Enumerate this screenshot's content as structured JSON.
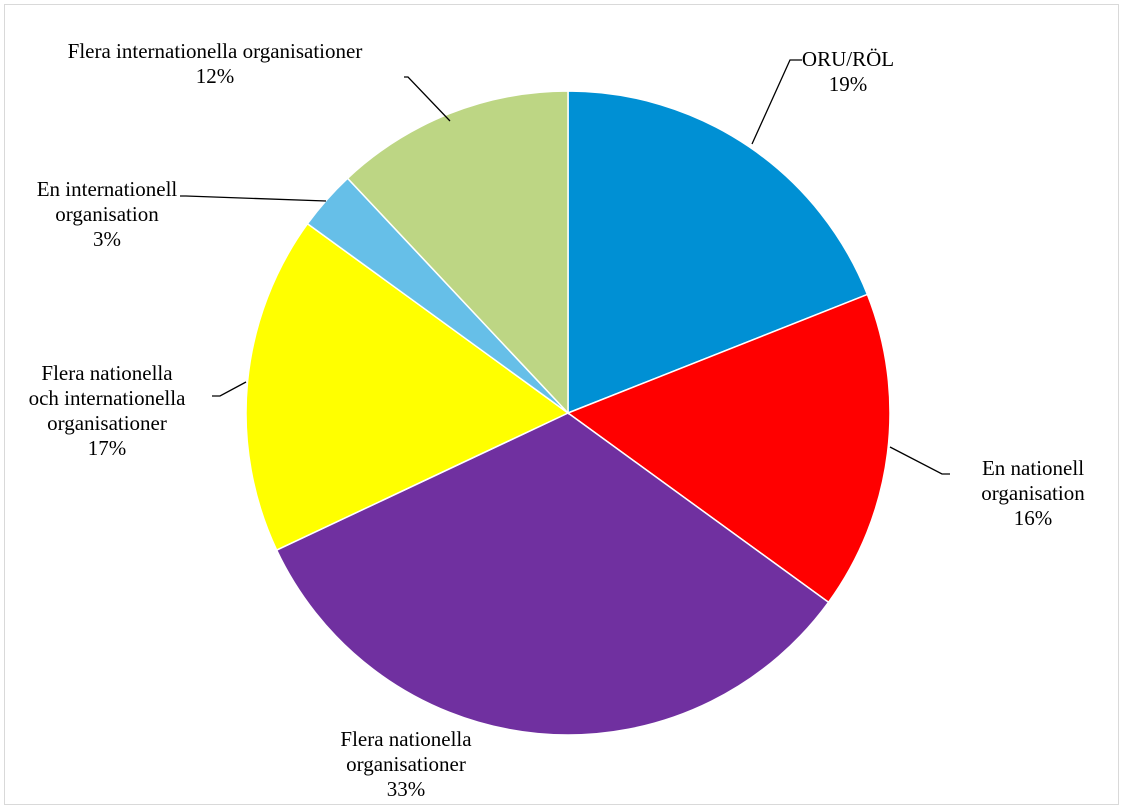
{
  "chart_data": {
    "type": "pie",
    "title": "",
    "slices": [
      {
        "label": "ORU/RÖL",
        "label_lines": [
          "ORU/RÖL"
        ],
        "value": 19,
        "value_label": "19%",
        "color": "#0090D4"
      },
      {
        "label": "En nationell organisation",
        "label_lines": [
          "En nationell",
          "organisation"
        ],
        "value": 16,
        "value_label": "16%",
        "color": "#FF0000"
      },
      {
        "label": "Flera nationella organisationer",
        "label_lines": [
          "Flera nationella",
          "organisationer"
        ],
        "value": 33,
        "value_label": "33%",
        "color": "#7030A0"
      },
      {
        "label": "Flera nationella och internationella organisationer",
        "label_lines": [
          "Flera nationella",
          "och internationella",
          "organisationer"
        ],
        "value": 17,
        "value_label": "17%",
        "color": "#FFFF00"
      },
      {
        "label": "En internationell organisation",
        "label_lines": [
          "En internationell",
          "organisation"
        ],
        "value": 3,
        "value_label": "3%",
        "color": "#66BFE8"
      },
      {
        "label": "Flera internationella organisationer",
        "label_lines": [
          "Flera internationella organisationer"
        ],
        "value": 12,
        "value_label": "12%",
        "color": "#BDD684"
      }
    ],
    "start_angle": "12 o'clock",
    "direction": "clockwise",
    "legend": "none",
    "data_labels": "outside with leader lines"
  }
}
